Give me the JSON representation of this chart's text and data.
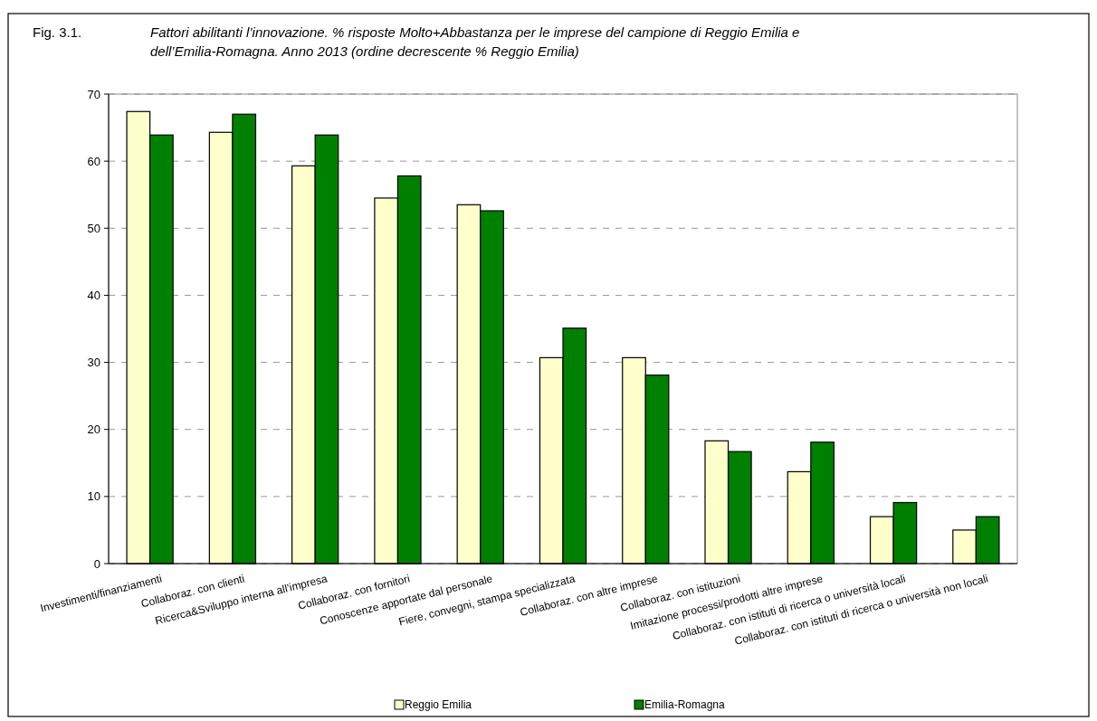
{
  "chart_data": {
    "type": "bar",
    "title": "Fig. 3.1.",
    "subtitle": "Fattori abilitanti l’innovazione. % risposte Molto+Abbastanza per le imprese del campione di Reggio Emilia e dell’Emilia-Romagna. Anno 2013 (ordine decrescente % Reggio Emilia)",
    "categories": [
      "Investimenti/finanziamenti",
      "Collaboraz. con clienti",
      "Ricerca&Sviluppo interna all’impresa",
      "Collaboraz. con fornitori",
      "Conoscenze apportate dal personale",
      "Fiere, convegni, stampa specializzata",
      "Collaboraz. con altre imprese",
      "Collaboraz. con istituzioni",
      "Imitazione processi/prodotti altre imprese",
      "Collaboraz. con istituti di ricerca o università locali",
      "Collaboraz. con istituti di ricerca o università non locali"
    ],
    "series": [
      {
        "name": "Reggio Emilia",
        "color": "#ffffcc",
        "values": [
          67.4,
          64.3,
          59.3,
          54.5,
          53.5,
          30.7,
          30.7,
          18.3,
          13.7,
          7,
          5
        ]
      },
      {
        "name": "Emilia-Romagna",
        "color": "#008000",
        "values": [
          63.9,
          67,
          63.9,
          57.8,
          52.6,
          35.1,
          28.1,
          16.7,
          18.1,
          9.1,
          7
        ]
      }
    ],
    "ylim": [
      0,
      70
    ],
    "yticks": [
      0,
      10,
      20,
      30,
      40,
      50,
      60,
      70
    ],
    "grid": "y",
    "legend": "bottom"
  }
}
